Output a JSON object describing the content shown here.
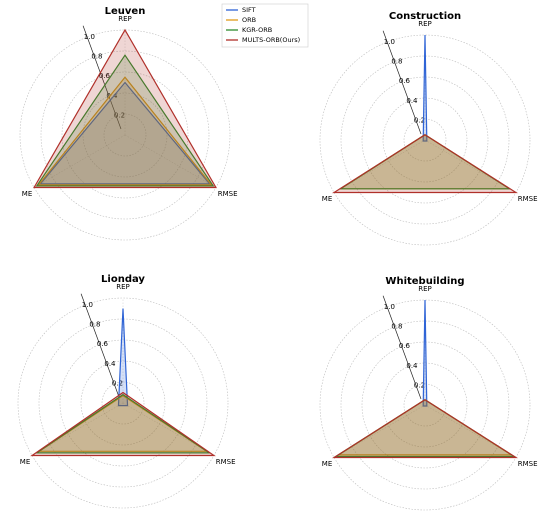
{
  "chart_data": [
    {
      "type": "radar",
      "title": "Leuven",
      "categories": [
        "REP",
        "RMSE",
        "ME"
      ],
      "ylim": [
        0,
        1
      ],
      "yticks": [
        0.2,
        0.4,
        0.6,
        0.8,
        {
          "value": 1,
          "label": "1.0"
        }
      ],
      "grid": true,
      "legend": "upper right",
      "series": [
        {
          "name": "SIFT",
          "color": "#2f64d6",
          "values": [
            0.5,
            0.93,
            0.93
          ]
        },
        {
          "name": "ORB",
          "color": "#e09a1a",
          "values": [
            0.55,
            0.95,
            0.95
          ]
        },
        {
          "name": "KGR-ORB",
          "color": "#2e8b2e",
          "values": [
            0.76,
            0.97,
            0.97
          ]
        },
        {
          "name": "MULTS-ORB(Ours)",
          "color": "#b0302a",
          "values": [
            1,
            1,
            1
          ]
        }
      ]
    },
    {
      "type": "radar",
      "title": "Construction",
      "categories": [
        "REP",
        "RMSE",
        "ME"
      ],
      "ylim": [
        0,
        1
      ],
      "yticks": [
        0.2,
        0.4,
        0.6,
        0.8,
        {
          "value": 1,
          "label": "1.0"
        }
      ],
      "grid": true,
      "series": [
        {
          "name": "SIFT",
          "color": "#2f64d6",
          "values": [
            1,
            0.02,
            0.02
          ]
        },
        {
          "name": "ORB",
          "color": "#e09a1a",
          "values": [
            0.05,
            0.93,
            0.93
          ]
        },
        {
          "name": "KGR-ORB",
          "color": "#2e8b2e",
          "values": [
            0.05,
            0.93,
            0.93
          ]
        },
        {
          "name": "MULTS-ORB(Ours)",
          "color": "#b0302a",
          "values": [
            0.05,
            1,
            1
          ]
        }
      ]
    },
    {
      "type": "radar",
      "title": "Lionday",
      "categories": [
        "REP",
        "RMSE",
        "ME"
      ],
      "ylim": [
        0,
        1
      ],
      "yticks": [
        0.2,
        0.4,
        0.6,
        0.8,
        {
          "value": 1,
          "label": "1.0"
        }
      ],
      "grid": true,
      "series": [
        {
          "name": "SIFT",
          "color": "#2f64d6",
          "values": [
            0.9,
            0.05,
            0.05
          ]
        },
        {
          "name": "ORB",
          "color": "#e09a1a",
          "values": [
            0.07,
            0.92,
            0.92
          ]
        },
        {
          "name": "KGR-ORB",
          "color": "#2e8b2e",
          "values": [
            0.08,
            0.95,
            0.95
          ]
        },
        {
          "name": "MULTS-ORB(Ours)",
          "color": "#b0302a",
          "values": [
            0.1,
            1,
            1
          ]
        }
      ]
    },
    {
      "type": "radar",
      "title": "Whitebuilding",
      "categories": [
        "REP",
        "RMSE",
        "ME"
      ],
      "ylim": [
        0,
        1
      ],
      "yticks": [
        0.2,
        0.4,
        0.6,
        0.8,
        {
          "value": 1,
          "label": "1.0"
        }
      ],
      "grid": true,
      "series": [
        {
          "name": "SIFT",
          "color": "#2f64d6",
          "values": [
            1,
            0.02,
            0.02
          ]
        },
        {
          "name": "ORB",
          "color": "#e09a1a",
          "values": [
            0.05,
            0.95,
            0.95
          ]
        },
        {
          "name": "KGR-ORB",
          "color": "#2e8b2e",
          "values": [
            0.05,
            0.98,
            0.98
          ]
        },
        {
          "name": "MULTS-ORB(Ours)",
          "color": "#b0302a",
          "values": [
            0.05,
            1,
            1
          ]
        }
      ]
    }
  ]
}
